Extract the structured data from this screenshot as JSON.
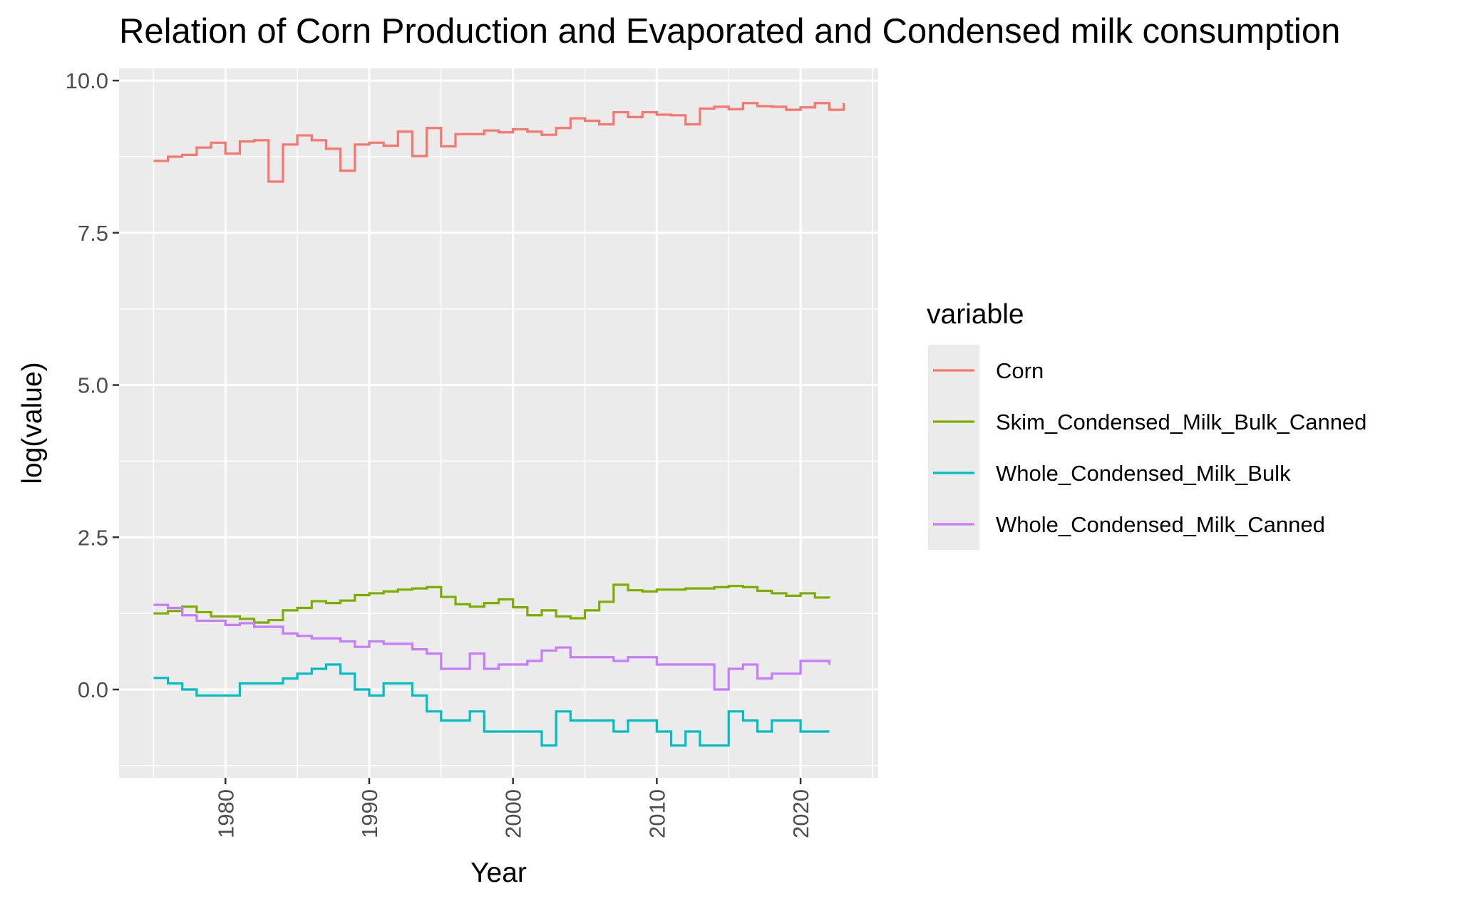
{
  "chart_data": {
    "type": "line",
    "step": true,
    "title": "Relation of Corn Production and Evaporated and Condensed milk consumption",
    "xlabel": "Year",
    "ylabel": "log(value)",
    "xlim": [
      1972.6,
      2025.4
    ],
    "ylim": [
      -1.45,
      10.2
    ],
    "x_ticks": [
      1980,
      1990,
      2000,
      2010,
      2020
    ],
    "x_tick_labels": [
      "1980",
      "1990",
      "2000",
      "2010",
      "2020"
    ],
    "y_ticks": [
      0,
      2.5,
      5,
      7.5,
      10
    ],
    "y_tick_labels": [
      "0.0",
      "2.5",
      "5.0",
      "7.5",
      "10.0"
    ],
    "grid": true,
    "legend_title": "variable",
    "legend_position": "right",
    "series": [
      {
        "name": "Corn",
        "color": "#F8766D",
        "x": [
          1975,
          1976,
          1977,
          1978,
          1979,
          1980,
          1981,
          1982,
          1983,
          1984,
          1985,
          1986,
          1987,
          1988,
          1989,
          1990,
          1991,
          1992,
          1993,
          1994,
          1995,
          1996,
          1997,
          1998,
          1999,
          2000,
          2001,
          2002,
          2003,
          2004,
          2005,
          2006,
          2007,
          2008,
          2009,
          2010,
          2011,
          2012,
          2013,
          2014,
          2015,
          2016,
          2017,
          2018,
          2019,
          2020,
          2021,
          2022,
          2023
        ],
        "values": [
          8.68,
          8.75,
          8.78,
          8.9,
          8.98,
          8.8,
          9.0,
          9.02,
          8.34,
          8.95,
          9.1,
          9.02,
          8.88,
          8.52,
          8.95,
          8.98,
          8.93,
          9.16,
          8.76,
          9.22,
          8.92,
          9.12,
          9.12,
          9.18,
          9.15,
          9.2,
          9.16,
          9.11,
          9.22,
          9.38,
          9.34,
          9.28,
          9.48,
          9.4,
          9.48,
          9.44,
          9.43,
          9.28,
          9.54,
          9.57,
          9.53,
          9.63,
          9.58,
          9.57,
          9.52,
          9.56,
          9.63,
          9.52,
          9.63
        ]
      },
      {
        "name": "Skim_Condensed_Milk_Bulk_Canned",
        "color": "#7CAE00",
        "x": [
          1975,
          1976,
          1977,
          1978,
          1979,
          1980,
          1981,
          1982,
          1983,
          1984,
          1985,
          1986,
          1987,
          1988,
          1989,
          1990,
          1991,
          1992,
          1993,
          1994,
          1995,
          1996,
          1997,
          1998,
          1999,
          2000,
          2001,
          2002,
          2003,
          2004,
          2005,
          2006,
          2007,
          2008,
          2009,
          2010,
          2011,
          2012,
          2013,
          2014,
          2015,
          2016,
          2017,
          2018,
          2019,
          2020,
          2021,
          2022
        ],
        "values": [
          1.25,
          1.29,
          1.36,
          1.27,
          1.2,
          1.2,
          1.16,
          1.1,
          1.14,
          1.3,
          1.34,
          1.45,
          1.42,
          1.46,
          1.55,
          1.58,
          1.61,
          1.64,
          1.66,
          1.68,
          1.52,
          1.4,
          1.36,
          1.42,
          1.48,
          1.35,
          1.22,
          1.3,
          1.2,
          1.17,
          1.3,
          1.44,
          1.72,
          1.63,
          1.61,
          1.64,
          1.64,
          1.66,
          1.66,
          1.68,
          1.7,
          1.68,
          1.62,
          1.58,
          1.54,
          1.58,
          1.51,
          1.5
        ]
      },
      {
        "name": "Whole_Condensed_Milk_Bulk",
        "color": "#00BFC4",
        "x": [
          1975,
          1976,
          1977,
          1978,
          1979,
          1980,
          1981,
          1982,
          1983,
          1984,
          1985,
          1986,
          1987,
          1988,
          1989,
          1990,
          1991,
          1992,
          1993,
          1994,
          1995,
          1996,
          1997,
          1998,
          1999,
          2000,
          2001,
          2002,
          2003,
          2004,
          2005,
          2006,
          2007,
          2008,
          2009,
          2010,
          2011,
          2012,
          2013,
          2014,
          2015,
          2016,
          2017,
          2018,
          2019,
          2020,
          2021,
          2022
        ],
        "values": [
          0.19,
          0.1,
          0.0,
          -0.1,
          -0.1,
          -0.1,
          0.1,
          0.1,
          0.1,
          0.18,
          0.26,
          0.34,
          0.41,
          0.26,
          0.0,
          -0.1,
          0.1,
          0.1,
          -0.1,
          -0.36,
          -0.51,
          -0.51,
          -0.36,
          -0.69,
          -0.69,
          -0.69,
          -0.69,
          -0.92,
          -0.36,
          -0.51,
          -0.51,
          -0.51,
          -0.69,
          -0.51,
          -0.51,
          -0.69,
          -0.92,
          -0.69,
          -0.92,
          -0.92,
          -0.36,
          -0.51,
          -0.69,
          -0.51,
          -0.51,
          -0.69,
          -0.69,
          -0.69
        ]
      },
      {
        "name": "Whole_Condensed_Milk_Canned",
        "color": "#C77CFF",
        "x": [
          1975,
          1976,
          1977,
          1978,
          1979,
          1980,
          1981,
          1982,
          1983,
          1984,
          1985,
          1986,
          1987,
          1988,
          1989,
          1990,
          1991,
          1992,
          1993,
          1994,
          1995,
          1996,
          1997,
          1998,
          1999,
          2000,
          2001,
          2002,
          2003,
          2004,
          2005,
          2006,
          2007,
          2008,
          2009,
          2010,
          2011,
          2012,
          2013,
          2014,
          2015,
          2016,
          2017,
          2018,
          2019,
          2020,
          2021,
          2022
        ],
        "values": [
          1.39,
          1.34,
          1.22,
          1.13,
          1.13,
          1.06,
          1.09,
          1.03,
          1.03,
          0.92,
          0.88,
          0.84,
          0.84,
          0.79,
          0.7,
          0.79,
          0.75,
          0.75,
          0.66,
          0.59,
          0.34,
          0.34,
          0.59,
          0.34,
          0.41,
          0.41,
          0.47,
          0.64,
          0.69,
          0.53,
          0.53,
          0.53,
          0.47,
          0.53,
          0.53,
          0.41,
          0.41,
          0.41,
          0.41,
          0.0,
          0.34,
          0.41,
          0.18,
          0.26,
          0.26,
          0.47,
          0.47,
          0.41
        ]
      }
    ]
  }
}
